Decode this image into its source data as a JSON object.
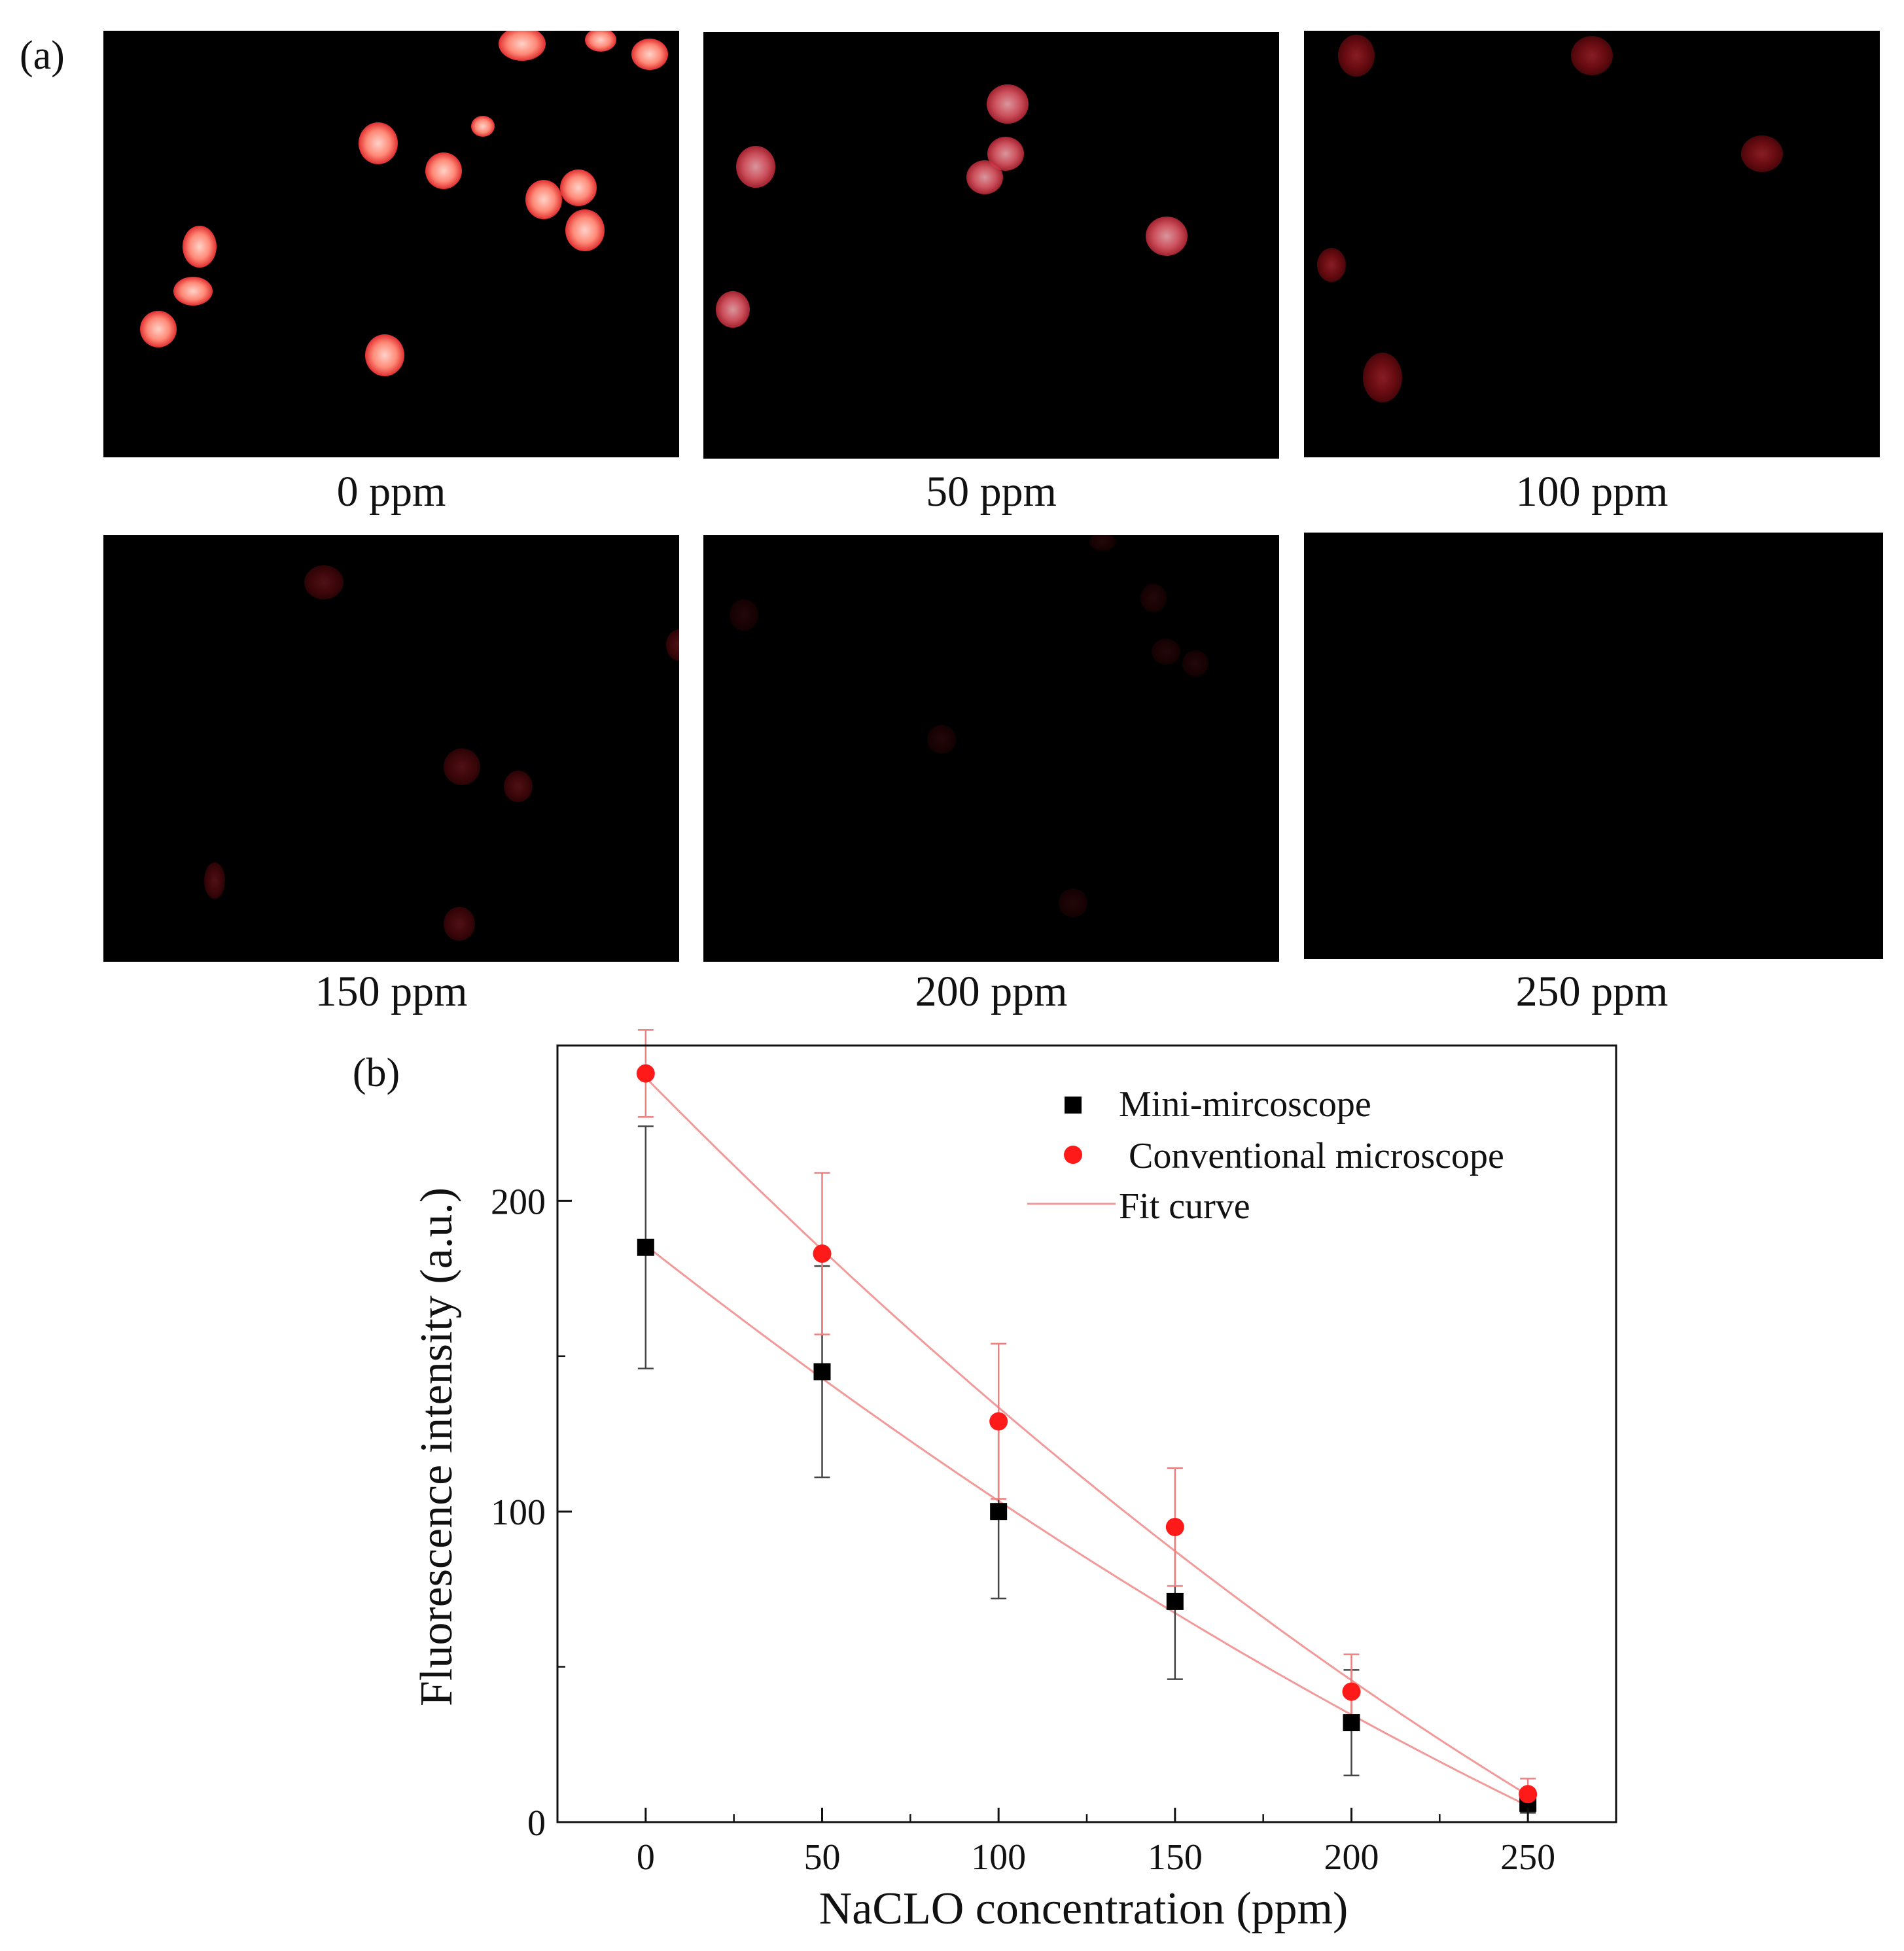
{
  "panel_a": {
    "label": "(a)",
    "images": [
      {
        "caption": "0 ppm",
        "brightness": 1.0
      },
      {
        "caption": "50 ppm",
        "brightness": 0.85
      },
      {
        "caption": "100 ppm",
        "brightness": 0.6
      },
      {
        "caption": "150 ppm",
        "brightness": 0.35
      },
      {
        "caption": "200 ppm",
        "brightness": 0.15
      },
      {
        "caption": "250 ppm",
        "brightness": 0.0
      }
    ]
  },
  "panel_b": {
    "label": "(b)"
  },
  "chart_data": {
    "type": "scatter",
    "xlabel": "NaCLO concentration (ppm)",
    "ylabel": "Fluorescence intensity (a.u.)",
    "xlim": [
      -25,
      275
    ],
    "ylim": [
      0,
      250
    ],
    "xticks": [
      0,
      50,
      100,
      150,
      200,
      250
    ],
    "yticks": [
      0,
      100,
      200
    ],
    "legend_position": "top-right",
    "series": [
      {
        "name": "Mini-mircoscope",
        "color": "#000000",
        "marker": "square",
        "x": [
          0,
          50,
          100,
          150,
          200,
          250
        ],
        "y": [
          185,
          145,
          100,
          71,
          32,
          6
        ],
        "err": [
          39,
          34,
          28,
          25,
          17,
          3
        ]
      },
      {
        "name": "Conventional microscope",
        "color": "#ff1a1a",
        "marker": "circle",
        "x": [
          0,
          50,
          100,
          150,
          200,
          250
        ],
        "y": [
          241,
          183,
          129,
          95,
          42,
          9
        ],
        "err": [
          14,
          26,
          25,
          19,
          12,
          5
        ]
      }
    ],
    "fit_curve_label": "Fit curve",
    "fit_color": "#f29a9a"
  }
}
